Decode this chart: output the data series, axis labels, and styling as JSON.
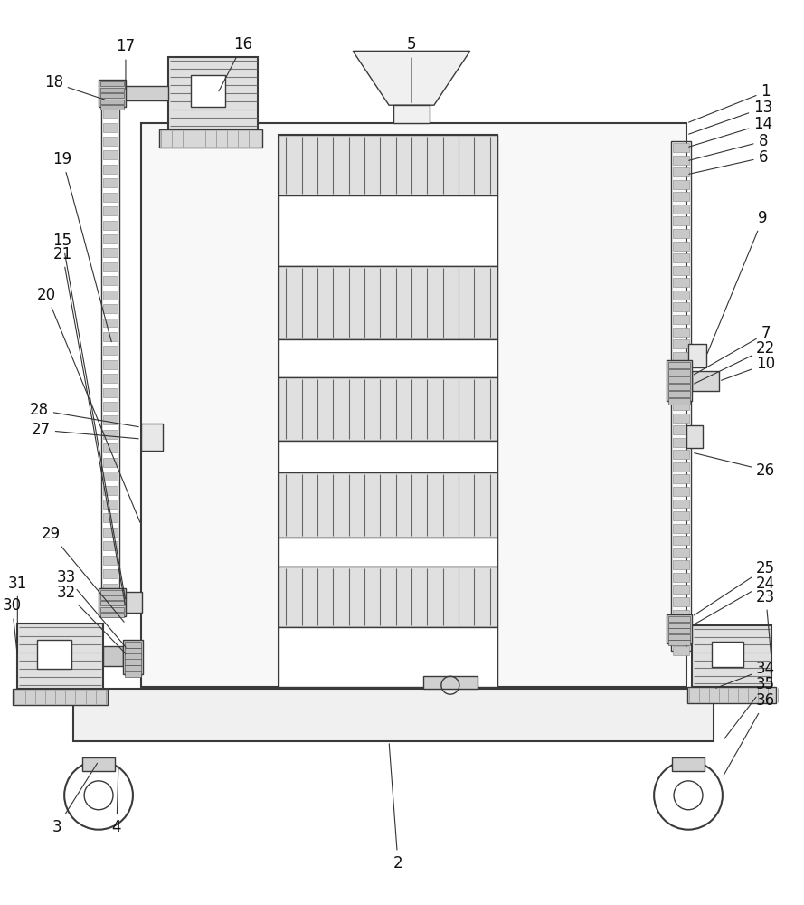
{
  "bg_color": "#ffffff",
  "line_color": "#3a3a3a",
  "label_color": "#111111",
  "figsize": [
    8.89,
    10.0
  ],
  "dpi": 100,
  "lw_main": 1.5,
  "lw_detail": 1.0,
  "lw_thin": 0.7,
  "label_fs": 12
}
